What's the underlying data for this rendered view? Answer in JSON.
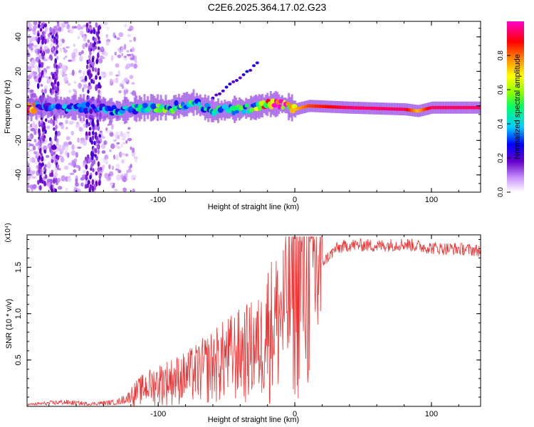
{
  "title": "C2E6.2025.364.17.02.G23",
  "chart_data": [
    {
      "type": "heatmap",
      "name": "spectrogram",
      "xlabel": "Height of straight line (km)",
      "ylabel": "Frequency (Hz)",
      "xlim": [
        -196,
        136
      ],
      "ylim": [
        -50,
        49
      ],
      "xticks": [
        -100,
        0,
        100
      ],
      "yticks": [
        -40,
        -20,
        0,
        20,
        40
      ],
      "xtick_labels": [
        "-100",
        "0",
        "100"
      ],
      "ytick_labels": [
        "-40",
        "-20",
        "0",
        "20",
        "40"
      ],
      "colorbar": {
        "label": "Normalized spectral amplitude",
        "range": [
          0,
          1
        ],
        "ticks": [
          0.0,
          0.2,
          0.4,
          0.6,
          0.8
        ],
        "tick_labels": [
          "0.0",
          "0.2",
          "0.4",
          "0.6",
          "0.8"
        ],
        "colors": [
          "#ffffff",
          "#cc99ff",
          "#6600cc",
          "#0000ff",
          "#00ccff",
          "#00ff66",
          "#88ff00",
          "#ffff00",
          "#ff8800",
          "#ff0000",
          "#ff00cc"
        ]
      },
      "ridge": [
        {
          "x": -190,
          "f": 0,
          "a": 0.3
        },
        {
          "x": -170,
          "f": -1,
          "a": 0.35
        },
        {
          "x": -150,
          "f": -1,
          "a": 0.3
        },
        {
          "x": -130,
          "f": -3,
          "a": 0.4
        },
        {
          "x": -110,
          "f": -1,
          "a": 0.45
        },
        {
          "x": -90,
          "f": -1,
          "a": 0.5
        },
        {
          "x": -75,
          "f": 2,
          "a": 0.45
        },
        {
          "x": -60,
          "f": -3,
          "a": 0.4
        },
        {
          "x": -45,
          "f": -2,
          "a": 0.45
        },
        {
          "x": -30,
          "f": -1,
          "a": 0.5
        },
        {
          "x": -20,
          "f": 1,
          "a": 0.75
        },
        {
          "x": -10,
          "f": 1,
          "a": 0.9
        },
        {
          "x": 0,
          "f": -2,
          "a": 0.75
        },
        {
          "x": 10,
          "f": 0,
          "a": 0.85
        },
        {
          "x": 40,
          "f": -1,
          "a": 0.95
        },
        {
          "x": 80,
          "f": -2,
          "a": 0.95
        },
        {
          "x": 90,
          "f": -3,
          "a": 0.75
        },
        {
          "x": 100,
          "f": -1,
          "a": 0.95
        },
        {
          "x": 136,
          "f": -1,
          "a": 0.95
        }
      ]
    },
    {
      "type": "line",
      "name": "snr",
      "xlabel": "Height of straight line (km)",
      "ylabel": "SNR (10 * v/v)",
      "multiplier": "(x10⁴)",
      "xlim": [
        -196,
        136
      ],
      "ylim": [
        0,
        1.85
      ],
      "xticks": [
        -100,
        0,
        100
      ],
      "yticks": [
        0.5,
        1.0,
        1.5
      ],
      "xtick_labels": [
        "-100",
        "0",
        "100"
      ],
      "ytick_labels": [
        "0.5",
        "1.0",
        "1.5"
      ],
      "color": "#ee3333",
      "envelope": {
        "x": [
          -196,
          -170,
          -150,
          -130,
          -120,
          -110,
          -100,
          -80,
          -70,
          -60,
          -45,
          -35,
          -25,
          -20,
          -15,
          -10,
          -5,
          0,
          5,
          10,
          15,
          20,
          25,
          30,
          40,
          50,
          60,
          70,
          80,
          90,
          100,
          110,
          120,
          136
        ],
        "y": [
          0.02,
          0.05,
          0.03,
          0.05,
          0.12,
          0.2,
          0.25,
          0.32,
          0.38,
          0.45,
          0.55,
          0.6,
          0.65,
          0.85,
          0.9,
          0.95,
          1.1,
          1.25,
          1.3,
          1.35,
          1.4,
          1.55,
          1.62,
          1.7,
          1.74,
          1.74,
          1.73,
          1.74,
          1.75,
          1.73,
          1.71,
          1.7,
          1.7,
          1.68
        ]
      }
    }
  ]
}
